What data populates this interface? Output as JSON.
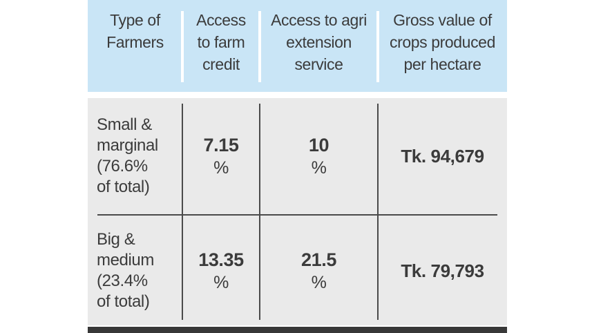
{
  "colors": {
    "page-bg": "#ffffff",
    "header-bg": "#c9e5f6",
    "body-bg": "#eaeaea",
    "text": "#3b3b3b",
    "divider": "#4a4a4a",
    "header-divider": "#ffffff",
    "bottom-bar": "#383838"
  },
  "table": {
    "headers": [
      {
        "text": "Type of\nFarmers"
      },
      {
        "text": "Access\nto farm\ncredit"
      },
      {
        "text": "Access to agri\nextension\nservice"
      },
      {
        "text": "Gross value of\ncrops produced\nper hectare"
      }
    ],
    "rows": [
      {
        "type": "Small &\nmarginal\n(76.6%\nof total)",
        "credit_value": "7.15",
        "credit_unit": "%",
        "extension_value": "10",
        "extension_unit": "%",
        "gross_value": "Tk. 94,679"
      },
      {
        "type": "Big &\nmedium\n(23.4%\nof total)",
        "credit_value": "13.35",
        "credit_unit": "%",
        "extension_value": "21.5",
        "extension_unit": "%",
        "gross_value": "Tk. 79,793"
      }
    ]
  },
  "chart_data": {
    "type": "table",
    "columns": [
      "Type of Farmers",
      "Access to farm credit",
      "Access to agri extension service",
      "Gross value of crops produced per hectare"
    ],
    "rows": [
      [
        "Small & marginal (76.6% of total)",
        "7.15 %",
        "10 %",
        "Tk. 94,679"
      ],
      [
        "Big & medium (23.4% of total)",
        "13.35 %",
        "21.5 %",
        "Tk. 79,793"
      ]
    ]
  }
}
